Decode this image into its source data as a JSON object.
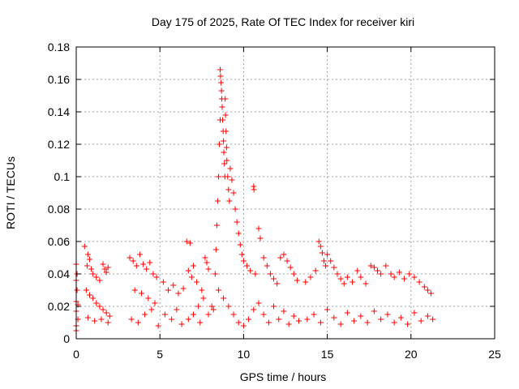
{
  "chart_data": {
    "type": "scatter",
    "title": "Day 175 of 2025, Rate Of TEC Index for receiver kiri",
    "xlabel": "GPS time / hours",
    "ylabel": "ROTI / TECUs",
    "xlim": [
      0,
      25
    ],
    "ylim": [
      0,
      0.18
    ],
    "x_ticks": [
      0,
      5,
      10,
      15,
      20,
      25
    ],
    "x_tick_labels": [
      "0",
      "5",
      "10",
      "15",
      "20",
      "25"
    ],
    "y_ticks": [
      0,
      0.02,
      0.04,
      0.06,
      0.08,
      0.1,
      0.12,
      0.14,
      0.16,
      0.18
    ],
    "y_tick_labels": [
      "0",
      "0.02",
      "0.04",
      "0.06",
      "0.08",
      "0.1",
      "0.12",
      "0.14",
      "0.16",
      "0.18"
    ],
    "grid": true,
    "marker": "+",
    "marker_color": "#ff0000",
    "series": [
      {
        "name": "ROTI",
        "points": [
          [
            0.0,
            0.046
          ],
          [
            0.0,
            0.036
          ],
          [
            0.0,
            0.023
          ],
          [
            0.0,
            0.017
          ],
          [
            0.0,
            0.008
          ],
          [
            0.0,
            0.005
          ],
          [
            0.05,
            0.03
          ],
          [
            0.1,
            0.021
          ],
          [
            0.1,
            0.012
          ],
          [
            0.05,
            0.04
          ],
          [
            0.5,
            0.057
          ],
          [
            0.7,
            0.052
          ],
          [
            0.8,
            0.049
          ],
          [
            0.65,
            0.045
          ],
          [
            0.9,
            0.043
          ],
          [
            1.0,
            0.04
          ],
          [
            1.2,
            0.038
          ],
          [
            1.4,
            0.036
          ],
          [
            1.6,
            0.046
          ],
          [
            1.7,
            0.043
          ],
          [
            1.8,
            0.041
          ],
          [
            1.9,
            0.044
          ],
          [
            0.6,
            0.03
          ],
          [
            0.8,
            0.027
          ],
          [
            1.0,
            0.025
          ],
          [
            1.2,
            0.022
          ],
          [
            1.4,
            0.02
          ],
          [
            1.6,
            0.018
          ],
          [
            1.8,
            0.016
          ],
          [
            2.0,
            0.014
          ],
          [
            0.7,
            0.013
          ],
          [
            1.1,
            0.011
          ],
          [
            1.5,
            0.012
          ],
          [
            1.9,
            0.01
          ],
          [
            3.2,
            0.05
          ],
          [
            3.4,
            0.048
          ],
          [
            3.6,
            0.045
          ],
          [
            3.8,
            0.052
          ],
          [
            4.0,
            0.046
          ],
          [
            4.2,
            0.043
          ],
          [
            4.4,
            0.047
          ],
          [
            4.6,
            0.04
          ],
          [
            4.8,
            0.038
          ],
          [
            3.5,
            0.03
          ],
          [
            3.9,
            0.028
          ],
          [
            4.3,
            0.025
          ],
          [
            4.7,
            0.022
          ],
          [
            3.3,
            0.012
          ],
          [
            3.7,
            0.01
          ],
          [
            4.1,
            0.015
          ],
          [
            4.5,
            0.018
          ],
          [
            4.9,
            0.008
          ],
          [
            5.2,
            0.035
          ],
          [
            5.5,
            0.03
          ],
          [
            5.8,
            0.033
          ],
          [
            6.1,
            0.028
          ],
          [
            6.4,
            0.031
          ],
          [
            5.3,
            0.015
          ],
          [
            5.7,
            0.012
          ],
          [
            6.0,
            0.018
          ],
          [
            6.3,
            0.009
          ],
          [
            6.6,
            0.06
          ],
          [
            6.8,
            0.059
          ],
          [
            7.0,
            0.045
          ],
          [
            6.7,
            0.042
          ],
          [
            6.9,
            0.038
          ],
          [
            7.2,
            0.035
          ],
          [
            7.5,
            0.03
          ],
          [
            7.7,
            0.05
          ],
          [
            7.8,
            0.047
          ],
          [
            7.9,
            0.043
          ],
          [
            7.6,
            0.025
          ],
          [
            7.3,
            0.02
          ],
          [
            7.0,
            0.015
          ],
          [
            6.7,
            0.012
          ],
          [
            7.4,
            0.01
          ],
          [
            7.9,
            0.015
          ],
          [
            8.1,
            0.02
          ],
          [
            8.2,
            0.018
          ],
          [
            8.3,
            0.04
          ],
          [
            8.35,
            0.055
          ],
          [
            8.4,
            0.07
          ],
          [
            8.45,
            0.085
          ],
          [
            8.5,
            0.1
          ],
          [
            8.55,
            0.12
          ],
          [
            8.6,
            0.135
          ],
          [
            8.6,
            0.166
          ],
          [
            8.62,
            0.162
          ],
          [
            8.65,
            0.158
          ],
          [
            8.68,
            0.153
          ],
          [
            8.7,
            0.148
          ],
          [
            8.72,
            0.143
          ],
          [
            8.75,
            0.135
          ],
          [
            8.78,
            0.128
          ],
          [
            8.8,
            0.122
          ],
          [
            8.82,
            0.115
          ],
          [
            8.85,
            0.108
          ],
          [
            8.88,
            0.1
          ],
          [
            8.9,
            0.148
          ],
          [
            8.92,
            0.138
          ],
          [
            8.95,
            0.128
          ],
          [
            8.98,
            0.118
          ],
          [
            9.0,
            0.11
          ],
          [
            9.05,
            0.1
          ],
          [
            9.1,
            0.092
          ],
          [
            9.15,
            0.085
          ],
          [
            9.2,
            0.105
          ],
          [
            9.3,
            0.098
          ],
          [
            9.4,
            0.09
          ],
          [
            9.5,
            0.08
          ],
          [
            9.6,
            0.072
          ],
          [
            9.7,
            0.065
          ],
          [
            9.8,
            0.058
          ],
          [
            9.9,
            0.052
          ],
          [
            10.0,
            0.048
          ],
          [
            10.2,
            0.045
          ],
          [
            10.4,
            0.042
          ],
          [
            10.6,
            0.094
          ],
          [
            10.62,
            0.092
          ],
          [
            10.7,
            0.04
          ],
          [
            10.9,
            0.068
          ],
          [
            11.0,
            0.062
          ],
          [
            11.2,
            0.05
          ],
          [
            11.4,
            0.045
          ],
          [
            11.6,
            0.04
          ],
          [
            11.8,
            0.037
          ],
          [
            12.0,
            0.034
          ],
          [
            12.2,
            0.05
          ],
          [
            12.4,
            0.052
          ],
          [
            12.6,
            0.048
          ],
          [
            12.8,
            0.044
          ],
          [
            13.0,
            0.04
          ],
          [
            13.2,
            0.036
          ],
          [
            8.5,
            0.03
          ],
          [
            8.8,
            0.025
          ],
          [
            9.1,
            0.02
          ],
          [
            9.4,
            0.015
          ],
          [
            9.7,
            0.01
          ],
          [
            10.0,
            0.008
          ],
          [
            10.3,
            0.012
          ],
          [
            10.6,
            0.018
          ],
          [
            10.9,
            0.022
          ],
          [
            11.2,
            0.015
          ],
          [
            11.5,
            0.01
          ],
          [
            11.8,
            0.02
          ],
          [
            12.1,
            0.012
          ],
          [
            12.4,
            0.017
          ],
          [
            12.7,
            0.009
          ],
          [
            13.0,
            0.014
          ],
          [
            13.3,
            0.011
          ],
          [
            13.7,
            0.035
          ],
          [
            14.0,
            0.038
          ],
          [
            14.3,
            0.042
          ],
          [
            14.5,
            0.06
          ],
          [
            14.6,
            0.057
          ],
          [
            14.7,
            0.053
          ],
          [
            14.8,
            0.048
          ],
          [
            14.9,
            0.045
          ],
          [
            15.0,
            0.052
          ],
          [
            15.2,
            0.048
          ],
          [
            15.4,
            0.044
          ],
          [
            15.6,
            0.04
          ],
          [
            15.8,
            0.037
          ],
          [
            16.0,
            0.034
          ],
          [
            16.2,
            0.038
          ],
          [
            16.5,
            0.035
          ],
          [
            16.8,
            0.042
          ],
          [
            17.0,
            0.038
          ],
          [
            17.3,
            0.034
          ],
          [
            17.6,
            0.045
          ],
          [
            17.8,
            0.044
          ],
          [
            18.0,
            0.042
          ],
          [
            18.2,
            0.04
          ],
          [
            18.5,
            0.045
          ],
          [
            18.8,
            0.04
          ],
          [
            19.0,
            0.038
          ],
          [
            19.3,
            0.041
          ],
          [
            19.6,
            0.037
          ],
          [
            19.9,
            0.04
          ],
          [
            20.2,
            0.038
          ],
          [
            20.5,
            0.035
          ],
          [
            20.8,
            0.032
          ],
          [
            21.0,
            0.03
          ],
          [
            21.2,
            0.028
          ],
          [
            13.8,
            0.012
          ],
          [
            14.2,
            0.015
          ],
          [
            14.6,
            0.01
          ],
          [
            15.0,
            0.018
          ],
          [
            15.4,
            0.013
          ],
          [
            15.8,
            0.009
          ],
          [
            16.2,
            0.016
          ],
          [
            16.6,
            0.011
          ],
          [
            17.0,
            0.014
          ],
          [
            17.4,
            0.01
          ],
          [
            17.8,
            0.017
          ],
          [
            18.2,
            0.012
          ],
          [
            18.6,
            0.015
          ],
          [
            19.0,
            0.01
          ],
          [
            19.4,
            0.013
          ],
          [
            19.8,
            0.009
          ],
          [
            20.2,
            0.016
          ],
          [
            20.6,
            0.011
          ],
          [
            21.0,
            0.014
          ],
          [
            21.3,
            0.012
          ]
        ]
      }
    ]
  }
}
